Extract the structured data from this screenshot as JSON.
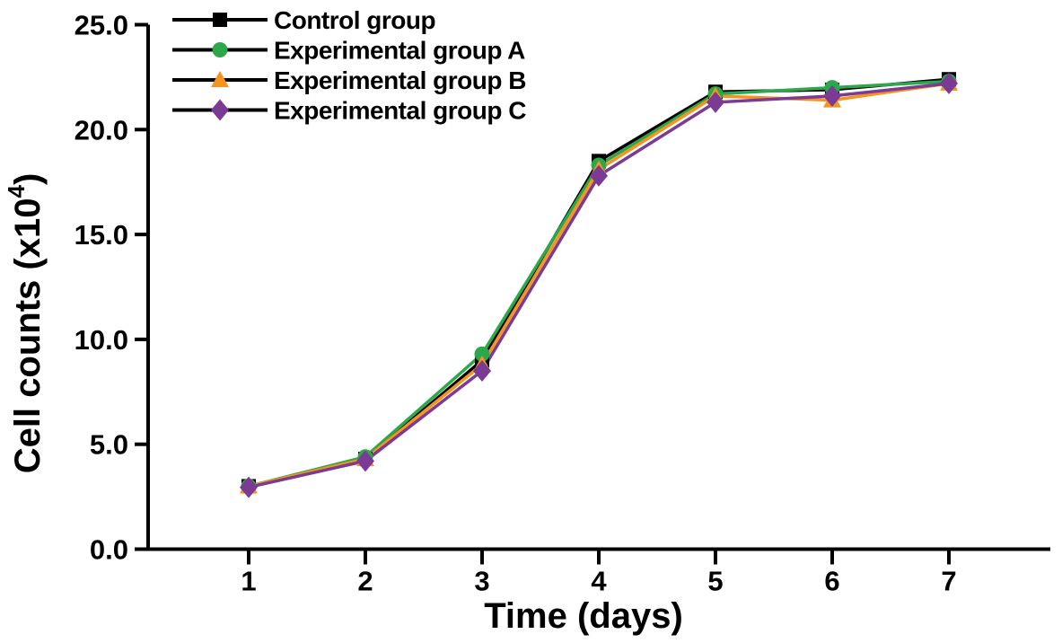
{
  "figure": {
    "background": "#ffffff",
    "axis_color": "#000000",
    "legend_line_color": "#000000"
  },
  "chart_data": {
    "type": "line",
    "title": "",
    "xlabel": "Time (days)",
    "ylabel_prefix": "Cell counts (x10",
    "ylabel_superscript": "4",
    "ylabel_suffix": ")",
    "x": [
      1,
      2,
      3,
      4,
      5,
      6,
      7
    ],
    "x_tick_labels": [
      "1",
      "2",
      "3",
      "4",
      "5",
      "6",
      "7"
    ],
    "y_tick_values": [
      0,
      5,
      10,
      15,
      20,
      25
    ],
    "y_tick_labels": [
      "0.0",
      "5.0",
      "10.0",
      "15.0",
      "20.0",
      "25.0"
    ],
    "ylim": [
      0,
      25
    ],
    "grid": false,
    "legend_position": "top-left",
    "series": [
      {
        "name": "Control group",
        "marker": "square",
        "color": "#000000",
        "values": [
          3.0,
          4.3,
          9.0,
          18.5,
          21.8,
          21.9,
          22.4
        ]
      },
      {
        "name": "Experimental group A",
        "marker": "circle",
        "color": "#2aa84a",
        "values": [
          3.0,
          4.4,
          9.3,
          18.3,
          21.7,
          22.0,
          22.3
        ]
      },
      {
        "name": "Experimental group B",
        "marker": "triangle",
        "color": "#f7941e",
        "values": [
          3.0,
          4.3,
          8.8,
          18.1,
          21.6,
          21.4,
          22.2
        ]
      },
      {
        "name": "Experimental group C",
        "marker": "diamond",
        "color": "#7b3a93",
        "values": [
          2.95,
          4.2,
          8.5,
          17.8,
          21.3,
          21.6,
          22.2
        ]
      }
    ]
  }
}
